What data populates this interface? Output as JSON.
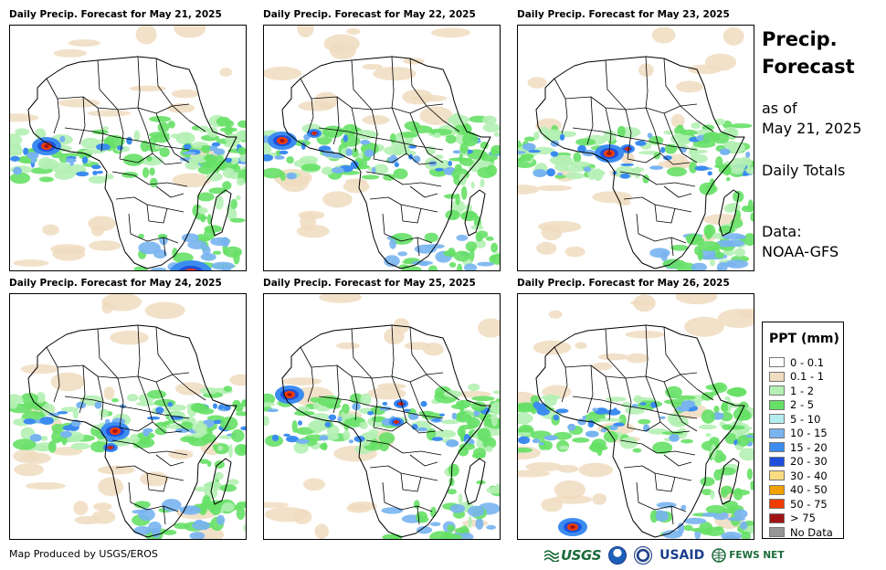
{
  "panels": [
    {
      "title": "Daily Precip. Forecast for May 21, 2025",
      "seed": 11,
      "hotspots": [
        [
          40,
          132,
          2
        ],
        [
          198,
          272,
          3
        ]
      ]
    },
    {
      "title": "Daily Precip. Forecast for May 22, 2025",
      "seed": 23,
      "hotspots": [
        [
          20,
          126,
          2
        ],
        [
          55,
          118,
          1
        ]
      ]
    },
    {
      "title": "Daily Precip. Forecast for May 23, 2025",
      "seed": 37,
      "hotspots": [
        [
          100,
          140,
          2
        ],
        [
          120,
          135,
          1
        ]
      ]
    },
    {
      "title": "Daily Precip. Forecast for May 24, 2025",
      "seed": 41,
      "hotspots": [
        [
          115,
          150,
          2
        ],
        [
          110,
          168,
          1
        ]
      ]
    },
    {
      "title": "Daily Precip. Forecast for May 25, 2025",
      "seed": 53,
      "hotspots": [
        [
          28,
          110,
          2
        ],
        [
          150,
          120,
          1
        ],
        [
          145,
          140,
          1
        ]
      ]
    },
    {
      "title": "Daily Precip. Forecast for May 26, 2025",
      "seed": 67,
      "hotspots": [
        [
          60,
          255,
          2
        ]
      ]
    }
  ],
  "sidebar": {
    "title_line1": "Precip.",
    "title_line2": "Forecast",
    "as_of_label": "as of",
    "as_of_date": "May 21, 2025",
    "totals_label": "Daily Totals",
    "data_label": "Data:",
    "data_source": "NOAA-GFS"
  },
  "legend": {
    "title": "PPT (mm)",
    "items": [
      {
        "label": "0 - 0.1",
        "color": "#ffffff"
      },
      {
        "label": "0.1 - 1",
        "color": "#f0dcc0"
      },
      {
        "label": "1 - 2",
        "color": "#b4f0b4"
      },
      {
        "label": "2 - 5",
        "color": "#66e066"
      },
      {
        "label": "5 - 10",
        "color": "#b4ecf0"
      },
      {
        "label": "10 - 15",
        "color": "#78b4f0"
      },
      {
        "label": "15 - 20",
        "color": "#3c8cf0"
      },
      {
        "label": "20 - 30",
        "color": "#1e50dc"
      },
      {
        "label": "30 - 40",
        "color": "#fadc82"
      },
      {
        "label": "40 - 50",
        "color": "#f0a000"
      },
      {
        "label": "50 - 75",
        "color": "#f03c00"
      },
      {
        "label": "> 75",
        "color": "#a01414"
      },
      {
        "label": "No Data",
        "color": "#969696"
      }
    ]
  },
  "footer": {
    "credit": "Map Produced by USGS/EROS",
    "logo_usgs": "USGS",
    "logo_usaid": "USAID",
    "logo_fews": "FEWS NET"
  }
}
